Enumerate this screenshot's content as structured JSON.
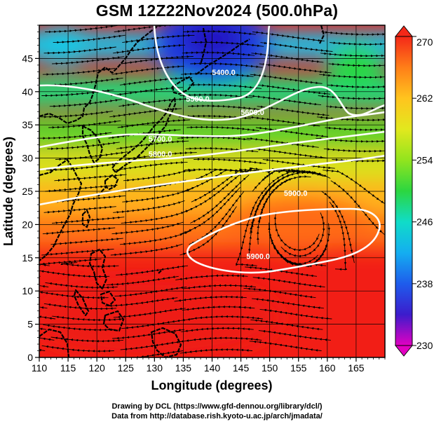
{
  "title": "GSM 12Z22Nov2024 (500.0hPa)",
  "footer": {
    "line1": "Drawing by DCL (https://www.gfd-dennou.org/library/dcl/)",
    "line2": "Data from http://database.rish.kyoto-u.ac.jp/arch/jmadata/"
  },
  "map": {
    "xlabel": "Longitude (degrees)",
    "ylabel": "Latitude  (degrees)",
    "x_ticks": [
      "110",
      "115",
      "120",
      "125",
      "130",
      "135",
      "140",
      "145",
      "150",
      "155",
      "160",
      "165"
    ],
    "y_ticks": [
      "0",
      "5",
      "10",
      "15",
      "20",
      "25",
      "30",
      "35",
      "40",
      "45"
    ],
    "lon_range": [
      110,
      170
    ],
    "lat_range": [
      0,
      50
    ],
    "fill_variable": "temperature (K)",
    "contour_variable": "geopotential height (m)",
    "contour_labels": [
      {
        "text": "5400.0",
        "lon": 142,
        "lat": 42.5
      },
      {
        "text": "5500.0",
        "lon": 137.5,
        "lat": 38.5
      },
      {
        "text": "5600.0",
        "lon": 147,
        "lat": 36.5
      },
      {
        "text": "5700.0",
        "lon": 131,
        "lat": 32.5
      },
      {
        "text": "5800.0",
        "lon": 131,
        "lat": 30.2
      },
      {
        "text": "5900.0",
        "lon": 154.5,
        "lat": 24.3
      },
      {
        "text": "5900.0",
        "lon": 148,
        "lat": 14.8
      }
    ],
    "high_center": {
      "lon": 155,
      "lat": 21
    },
    "low_center": {
      "lon": 138,
      "lat": 47
    }
  },
  "colorbar": {
    "tick_labels": [
      "270",
      "262",
      "254",
      "246",
      "238",
      "230"
    ],
    "min": 230,
    "max": 270,
    "colors": [
      "#e200c2",
      "#3c1ccc",
      "#1e5cec",
      "#14aef0",
      "#10dcc8",
      "#2cd640",
      "#92e41e",
      "#e2e81e",
      "#ffc41e",
      "#ff7e18",
      "#f42818"
    ]
  }
}
